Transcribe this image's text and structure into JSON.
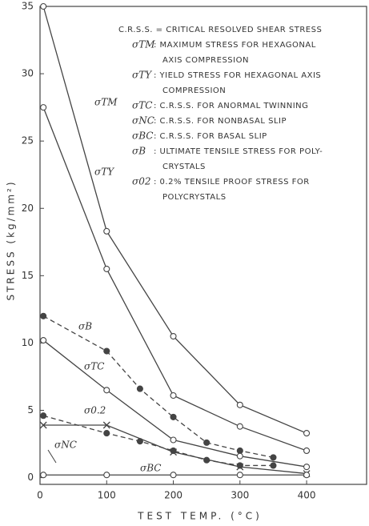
{
  "chart_data": {
    "type": "line",
    "xlabel": "TEST TEMP. (°C)",
    "ylabel": "STRESS (kg/mm²)",
    "xlim": [
      0,
      490
    ],
    "ylim": [
      -0.5,
      35
    ],
    "xticks": [
      0,
      100,
      200,
      300,
      400
    ],
    "yticks": [
      0,
      5,
      10,
      15,
      20,
      25,
      30,
      35
    ],
    "color": "#444",
    "series": [
      {
        "name": "σTM",
        "marker": "open",
        "dashed": false,
        "x": [
          5,
          100,
          200,
          300,
          400
        ],
        "values": [
          35,
          18.3,
          10.5,
          5.4,
          3.3
        ]
      },
      {
        "name": "σTY",
        "marker": "open",
        "dashed": false,
        "x": [
          5,
          100,
          200,
          300,
          400
        ],
        "values": [
          27.5,
          15.5,
          6.1,
          3.8,
          2.0
        ]
      },
      {
        "name": "σB",
        "marker": "filled",
        "dashed": true,
        "x": [
          5,
          100,
          150,
          200,
          250,
          300,
          350
        ],
        "values": [
          12,
          9.4,
          6.6,
          4.5,
          2.6,
          2.0,
          1.5
        ]
      },
      {
        "name": "σTC",
        "marker": "open",
        "dashed": false,
        "x": [
          5,
          100,
          200,
          300,
          400
        ],
        "values": [
          10.2,
          6.5,
          2.8,
          1.6,
          0.8
        ]
      },
      {
        "name": "σ0.2",
        "marker": "filled",
        "dashed": true,
        "x": [
          5,
          100,
          150,
          200,
          250,
          300,
          350
        ],
        "values": [
          4.6,
          3.3,
          2.7,
          2.0,
          1.3,
          0.9,
          0.9
        ]
      },
      {
        "name": "σNC",
        "marker": "cross",
        "dashed": false,
        "x": [
          5,
          100,
          200,
          300,
          400
        ],
        "values": [
          3.9,
          3.9,
          1.9,
          0.8,
          0.3
        ]
      },
      {
        "name": "σBC",
        "marker": "open",
        "dashed": false,
        "x": [
          5,
          100,
          200,
          300,
          400
        ],
        "values": [
          0.2,
          0.2,
          0.2,
          0.2,
          0.2
        ]
      }
    ],
    "legend": [
      {
        "lines": [
          "C.R.S.S. = CRITICAL RESOLVED SHEAR STRESS"
        ]
      },
      {
        "symbol": "σTM",
        "lines": [
          ": MAXIMUM STRESS FOR HEXAGONAL",
          "AXIS COMPRESSION"
        ]
      },
      {
        "symbol": "σTY",
        "lines": [
          ": YIELD STRESS FOR HEXAGONAL AXIS",
          "COMPRESSION"
        ]
      },
      {
        "symbol": "σTC",
        "lines": [
          ": C.R.S.S. FOR ANORMAL TWINNING"
        ]
      },
      {
        "symbol": "σNC",
        "lines": [
          ": C.R.S.S. FOR NONBASAL SLIP"
        ]
      },
      {
        "symbol": "σBC",
        "lines": [
          ": C.R.S.S. FOR BASAL SLIP"
        ]
      },
      {
        "symbol": "σB",
        "lines": [
          ": ULTIMATE TENSILE STRESS FOR POLY-",
          "CRYSTALS"
        ]
      },
      {
        "symbol": "σ02",
        "lines": [
          ": 0.2% TENSILE PROOF STRESS FOR",
          "POLYCRYSTALS"
        ]
      }
    ]
  }
}
